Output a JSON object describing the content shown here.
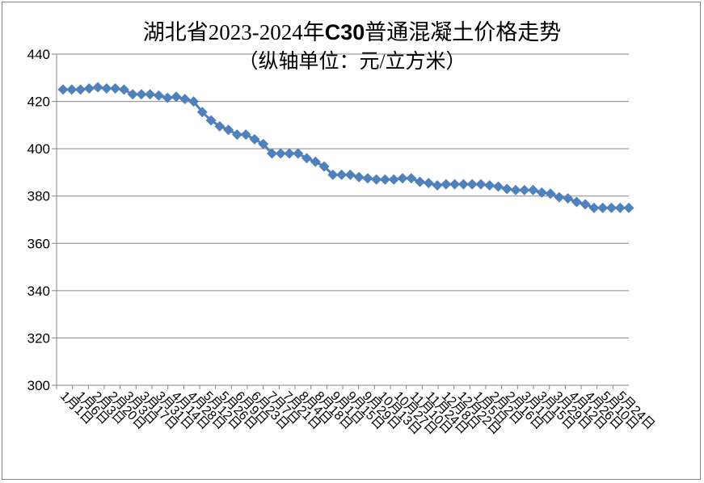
{
  "chart_data": {
    "type": "line",
    "title_parts": [
      "湖北省2023-2024年",
      "C30",
      "普通混凝土价格走势"
    ],
    "subtitle": "（纵轴单位：元/立方米）",
    "xlabel": "",
    "ylabel": "",
    "ylim": [
      300,
      440
    ],
    "yticks": [
      300,
      320,
      340,
      360,
      380,
      400,
      420,
      440
    ],
    "grid": true,
    "legend": "none",
    "marker": "diamond",
    "color": "#4F81BD",
    "x_tick_labels": [
      "1月1日",
      "1月6日",
      "2月3日",
      "2月20日",
      "3月3日",
      "3月17日",
      "3月31日",
      "4月14日",
      "4月28日",
      "5月12日",
      "5月26日",
      "6月9日",
      "6月23日",
      "7月7日",
      "7月21日",
      "8月4日",
      "8月18日",
      "9月1日",
      "9月15日",
      "9月29日",
      "10月13日",
      "10月27日",
      "11月10日",
      "11月24日",
      "12月8日",
      "12月22日",
      "1月5日",
      "2月2日",
      "2月16日",
      "3月1日",
      "3月15日",
      "3月29日",
      "4月12日",
      "4月26日",
      "5月10日",
      "5月24日"
    ],
    "values": [
      425,
      425,
      425,
      425.5,
      426,
      425.5,
      425.5,
      425,
      423,
      423,
      423,
      422.5,
      421.5,
      422,
      421,
      420,
      415.5,
      412,
      409.5,
      408,
      406,
      406,
      404,
      402,
      398,
      398,
      398,
      398,
      396,
      394.5,
      392.5,
      389,
      389,
      389,
      388,
      387.5,
      387,
      387,
      387,
      387.5,
      387.5,
      386,
      385.5,
      384.5,
      385,
      385,
      385,
      385,
      385,
      384.5,
      384,
      383,
      382.5,
      382.5,
      382.5,
      381.5,
      381,
      379.5,
      379,
      377.5,
      376.5,
      375,
      375,
      375,
      375,
      375
    ]
  }
}
